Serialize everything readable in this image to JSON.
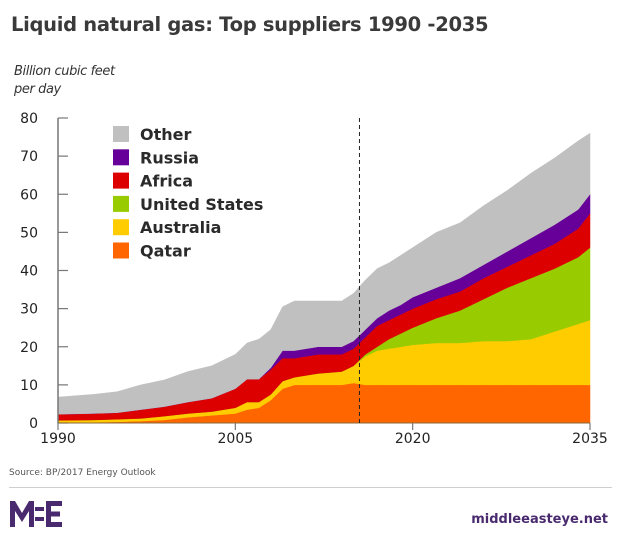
{
  "header": {
    "title": "Liquid natural gas: Top suppliers 1990 -2035"
  },
  "footer": {
    "source": "Source: BP/2017 Energy Outlook",
    "site": "middleeasteye.net",
    "logo_icon": "mee-logo-icon",
    "brand_color": "#4a2a6e"
  },
  "chart_data": {
    "type": "area",
    "stacked": true,
    "title": "Liquid natural gas: Top suppliers 1990 -2035",
    "ylabel": "Billion cubic feet per day",
    "xlabel": "",
    "ylim": [
      0,
      80
    ],
    "xlim": [
      1990,
      2035
    ],
    "yticks": [
      0,
      10,
      20,
      30,
      40,
      50,
      60,
      70,
      80
    ],
    "xticks": [
      1990,
      2005,
      2020,
      2035
    ],
    "grid": false,
    "legend_position": "top-left",
    "annotation": {
      "type": "dashed-vertical-line",
      "x": 2015.5,
      "meaning": "projection start"
    },
    "x": [
      1990,
      1993,
      1995,
      1997,
      1999,
      2001,
      2003,
      2005,
      2006,
      2007,
      2008,
      2009,
      2010,
      2012,
      2014,
      2015,
      2016,
      2017,
      2018,
      2019,
      2020,
      2022,
      2024,
      2026,
      2028,
      2030,
      2032,
      2034,
      2035
    ],
    "series": [
      {
        "name": "Qatar",
        "color": "#ff6600",
        "values": [
          0.2,
          0.2,
          0.3,
          0.5,
          0.8,
          1.5,
          2.0,
          2.5,
          3.5,
          4.0,
          6.0,
          9.0,
          10.0,
          10.0,
          10.0,
          10.5,
          10.0,
          10.0,
          10.0,
          10.0,
          10.0,
          10.0,
          10.0,
          10.0,
          10.0,
          10.0,
          10.0,
          10.0,
          10.0
        ]
      },
      {
        "name": "Australia",
        "color": "#ffcc00",
        "values": [
          0.5,
          0.6,
          0.7,
          0.7,
          1.0,
          1.0,
          1.0,
          1.5,
          2.0,
          1.5,
          1.5,
          2.0,
          2.0,
          3.0,
          3.5,
          4.5,
          7.5,
          9.0,
          9.5,
          10.0,
          10.5,
          11.0,
          11.0,
          11.5,
          11.5,
          12.0,
          14.0,
          16.0,
          17.0
        ]
      },
      {
        "name": "United States",
        "color": "#99cc00",
        "values": [
          0.0,
          0.0,
          0.0,
          0.0,
          0.0,
          0.0,
          0.0,
          0.0,
          0.0,
          0.0,
          0.0,
          0.0,
          0.0,
          0.0,
          0.0,
          0.0,
          0.5,
          1.0,
          2.5,
          3.5,
          4.5,
          6.5,
          8.5,
          11.0,
          14.0,
          16.0,
          16.5,
          17.5,
          19.0
        ]
      },
      {
        "name": "Africa",
        "color": "#dd0000",
        "values": [
          1.6,
          1.7,
          1.7,
          2.3,
          2.5,
          3.0,
          3.5,
          5.0,
          6.0,
          6.0,
          6.5,
          6.0,
          5.0,
          5.0,
          4.5,
          4.5,
          4.5,
          5.5,
          5.0,
          5.0,
          5.0,
          5.0,
          5.0,
          5.5,
          5.5,
          6.0,
          6.5,
          7.5,
          9.0
        ]
      },
      {
        "name": "Russia",
        "color": "#660099",
        "values": [
          0.0,
          0.0,
          0.0,
          0.0,
          0.0,
          0.0,
          0.0,
          0.0,
          0.0,
          0.0,
          0.5,
          2.0,
          2.0,
          2.0,
          2.0,
          2.0,
          2.0,
          2.0,
          2.5,
          2.5,
          3.0,
          3.0,
          3.5,
          3.5,
          4.0,
          4.5,
          5.0,
          5.0,
          5.0
        ]
      },
      {
        "name": "Other",
        "color": "#c0c0c0",
        "values": [
          4.5,
          5.0,
          5.5,
          6.5,
          7.0,
          8.0,
          8.5,
          9.0,
          9.5,
          10.5,
          10.0,
          11.5,
          13.0,
          12.0,
          12.0,
          12.5,
          13.0,
          13.0,
          12.5,
          13.0,
          13.0,
          14.5,
          14.5,
          15.5,
          16.0,
          17.0,
          17.5,
          18.0,
          16.0
        ]
      }
    ],
    "legend": [
      "Other",
      "Russia",
      "Africa",
      "United States",
      "Australia",
      "Qatar"
    ]
  }
}
